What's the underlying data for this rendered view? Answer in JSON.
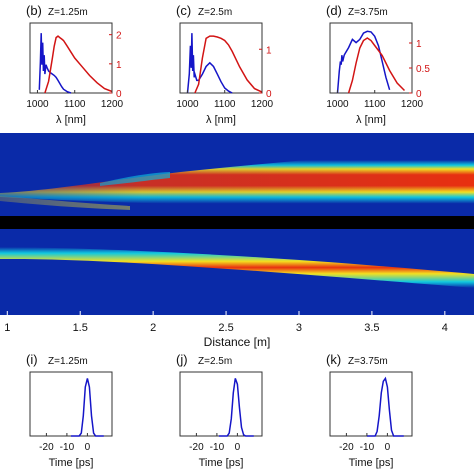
{
  "colors": {
    "blue": "#1515c8",
    "red": "#d21414",
    "map_bg": "#0a2aa8",
    "separator": "#000000"
  },
  "chart_data": [
    {
      "type": "line",
      "panel": "(b)",
      "annotation": "Z=1.25m",
      "xlabel": "λ [nm]",
      "x_ticks": [
        "1000",
        "1100",
        "1200"
      ],
      "xlim": [
        980,
        1200
      ],
      "right_ticks": [
        "0",
        "1",
        "2"
      ],
      "right_ylim": [
        0,
        2.4
      ],
      "series": [
        {
          "color": "blue",
          "x": [
            1005,
            1008,
            1010,
            1012,
            1014,
            1016,
            1018,
            1020,
            1023,
            1026,
            1030,
            1035,
            1040,
            1045,
            1050,
            1055,
            1060,
            1065,
            1070,
            1080,
            1090
          ],
          "y": [
            0.05,
            0.5,
            0.95,
            0.45,
            0.8,
            0.35,
            0.6,
            0.3,
            0.45,
            0.4,
            0.35,
            0.32,
            0.3,
            0.28,
            0.25,
            0.2,
            0.15,
            0.1,
            0.06,
            0.02,
            0.0
          ]
        },
        {
          "color": "red",
          "axis": "right",
          "x": [
            1020,
            1030,
            1040,
            1045,
            1050,
            1055,
            1060,
            1065,
            1070,
            1080,
            1090,
            1100,
            1120,
            1140,
            1160,
            1180,
            1200
          ],
          "y": [
            0.0,
            0.4,
            1.2,
            1.6,
            1.9,
            1.95,
            1.9,
            1.85,
            1.8,
            1.6,
            1.4,
            1.2,
            0.9,
            0.6,
            0.35,
            0.15,
            0.05
          ]
        }
      ]
    },
    {
      "type": "line",
      "panel": "(c)",
      "annotation": "Z=2.5m",
      "xlabel": "λ [nm]",
      "x_ticks": [
        "1000",
        "1100",
        "1200"
      ],
      "xlim": [
        980,
        1200
      ],
      "right_ticks": [
        "0",
        "1"
      ],
      "right_ylim": [
        0,
        1.6
      ],
      "series": [
        {
          "color": "blue",
          "x": [
            1000,
            1005,
            1008,
            1010,
            1012,
            1014,
            1016,
            1018,
            1020,
            1025,
            1030,
            1040,
            1050,
            1060,
            1070,
            1080,
            1090,
            1100,
            1110,
            1120
          ],
          "y": [
            0.0,
            0.3,
            0.75,
            0.4,
            0.95,
            0.35,
            0.6,
            0.25,
            0.3,
            0.2,
            0.2,
            0.3,
            0.42,
            0.48,
            0.42,
            0.3,
            0.18,
            0.08,
            0.03,
            0.0
          ]
        },
        {
          "color": "red",
          "axis": "right",
          "x": [
            1020,
            1030,
            1040,
            1050,
            1060,
            1070,
            1080,
            1090,
            1100,
            1110,
            1120,
            1140,
            1160,
            1180,
            1200
          ],
          "y": [
            0.0,
            0.2,
            0.8,
            1.25,
            1.3,
            1.3,
            1.28,
            1.25,
            1.2,
            1.1,
            0.95,
            0.6,
            0.3,
            0.1,
            0.02
          ]
        }
      ]
    },
    {
      "type": "line",
      "panel": "(d)",
      "annotation": "Z=3.75m",
      "xlabel": "λ [nm]",
      "x_ticks": [
        "1000",
        "1100",
        "1200"
      ],
      "xlim": [
        980,
        1200
      ],
      "right_ticks": [
        "0",
        "0.5",
        "1"
      ],
      "right_ylim": [
        0,
        1.4
      ],
      "series": [
        {
          "color": "blue",
          "x": [
            1000,
            1005,
            1008,
            1010,
            1012,
            1014,
            1016,
            1018,
            1020,
            1030,
            1040,
            1050,
            1060,
            1070,
            1080,
            1090,
            1100,
            1110,
            1120,
            1130,
            1140
          ],
          "y": [
            0.0,
            0.35,
            0.5,
            0.45,
            0.6,
            0.5,
            0.55,
            0.6,
            0.62,
            0.72,
            0.85,
            0.8,
            0.85,
            0.95,
            0.98,
            0.97,
            0.9,
            0.75,
            0.5,
            0.25,
            0.05
          ]
        },
        {
          "color": "red",
          "axis": "right",
          "x": [
            1030,
            1040,
            1050,
            1060,
            1070,
            1080,
            1090,
            1100,
            1110,
            1120,
            1130,
            1140,
            1160,
            1180
          ],
          "y": [
            0.0,
            0.25,
            0.6,
            0.9,
            1.05,
            1.1,
            1.05,
            0.95,
            0.85,
            0.75,
            0.6,
            0.45,
            0.2,
            0.05
          ]
        }
      ]
    },
    {
      "type": "heatmap",
      "panel": "spectral evolution",
      "xlim": [
        0.95,
        4.2
      ],
      "description_axis": "shared Distance axis"
    },
    {
      "type": "heatmap",
      "panel": "temporal evolution",
      "xlabel": "Distance [m]",
      "x_ticks": [
        "1",
        "1.5",
        "2",
        "2.5",
        "3",
        "3.5",
        "4"
      ],
      "xlim": [
        0.95,
        4.2
      ]
    },
    {
      "type": "line",
      "panel": "(i)",
      "annotation": "Z=1.25m",
      "xlabel": "Time [ps]",
      "x_ticks": [
        "-20",
        "-10",
        "0"
      ],
      "xlim": [
        -28,
        12
      ],
      "series": [
        {
          "color": "blue",
          "x": [
            -8,
            -4,
            -3,
            -2,
            -1,
            0,
            1,
            2,
            3,
            4,
            8
          ],
          "y": [
            0.0,
            0.0,
            0.05,
            0.35,
            0.85,
            1.0,
            0.85,
            0.35,
            0.05,
            0.0,
            0.0
          ]
        }
      ]
    },
    {
      "type": "line",
      "panel": "(j)",
      "annotation": "Z=2.5m",
      "xlabel": "Time [ps]",
      "x_ticks": [
        "-20",
        "-10",
        "0"
      ],
      "xlim": [
        -28,
        12
      ],
      "series": [
        {
          "color": "blue",
          "x": [
            -9,
            -5,
            -4,
            -3,
            -2,
            -1,
            0,
            1,
            2,
            3,
            4,
            8
          ],
          "y": [
            0.0,
            0.0,
            0.05,
            0.3,
            0.75,
            1.0,
            0.9,
            0.5,
            0.15,
            0.02,
            0.0,
            0.0
          ]
        }
      ]
    },
    {
      "type": "line",
      "panel": "(k)",
      "annotation": "Z=3.75m",
      "xlabel": "Time [ps]",
      "x_ticks": [
        "-20",
        "-10",
        "0"
      ],
      "xlim": [
        -28,
        12
      ],
      "series": [
        {
          "color": "blue",
          "x": [
            -10,
            -6,
            -5,
            -4,
            -3,
            -2,
            -1,
            0,
            1,
            2,
            3,
            8
          ],
          "y": [
            0.0,
            0.0,
            0.08,
            0.35,
            0.75,
            0.95,
            1.0,
            0.85,
            0.45,
            0.1,
            0.0,
            0.0
          ]
        }
      ]
    }
  ]
}
